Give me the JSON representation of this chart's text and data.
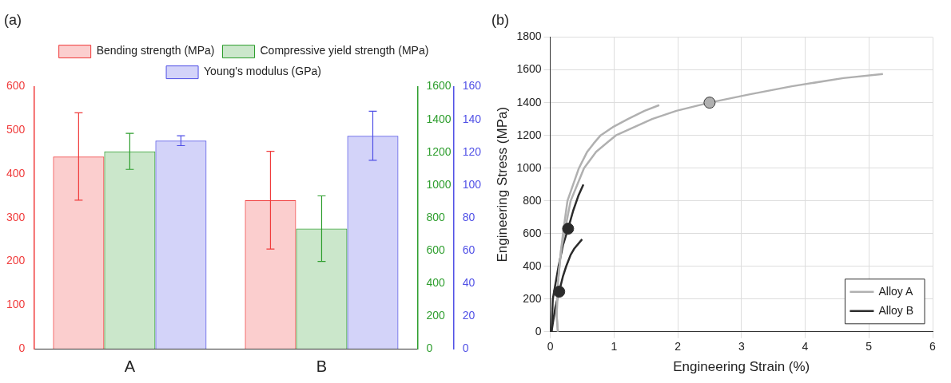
{
  "chart_data": [
    {
      "type": "bar",
      "title": "(a)",
      "categories": [
        "A",
        "B"
      ],
      "legend": "top",
      "grid": false,
      "ylim": [
        0,
        600
      ],
      "yticks": [
        0,
        100,
        200,
        300,
        400,
        500,
        600
      ],
      "y2lim": [
        0,
        1600
      ],
      "y2ticks": [
        0,
        200,
        400,
        600,
        800,
        1000,
        1200,
        1400,
        1600
      ],
      "y3lim": [
        0,
        160
      ],
      "y3ticks": [
        0,
        20,
        40,
        60,
        80,
        100,
        120,
        140,
        160
      ],
      "series": [
        {
          "name": "Bending strength (MPa)",
          "color": "#f03c3c",
          "values": [
            440,
            340
          ],
          "errors": [
            100,
            112
          ]
        },
        {
          "name": "Compressive yield strength (MPa)",
          "color": "#2e9e2e",
          "values": [
            1205,
            733
          ],
          "errors": [
            110,
            200
          ],
          "axis": "y2"
        },
        {
          "name": "Young's modulus (GPa)",
          "color": "#5050e6",
          "values": [
            127,
            130
          ],
          "errors": [
            3,
            15
          ],
          "axis": "y3"
        }
      ]
    },
    {
      "type": "line",
      "title": "(b)",
      "xlabel": "Engineering Strain (%)",
      "ylabel": "Engineering Stress (MPa)",
      "legend": "bottom right",
      "grid": true,
      "xlim": [
        0,
        6
      ],
      "xticks": [
        0,
        1,
        2,
        3,
        4,
        5,
        6
      ],
      "ylim": [
        0,
        1800
      ],
      "yticks": [
        0,
        200,
        400,
        600,
        800,
        1000,
        1200,
        1400,
        1600,
        1800
      ],
      "series": [
        {
          "name": "Alloy A",
          "color": "#b0b0b0",
          "marker": "none",
          "x": [
            0.12,
            0.1,
            0.12,
            0.17,
            0.22,
            0.32,
            0.53,
            0.72,
            1.03,
            1.6,
            1.98,
            2.5,
            3.12,
            3.79,
            4.6,
            5.22
          ],
          "values": [
            0,
            100,
            300,
            500,
            600,
            800,
            1000,
            1100,
            1200,
            1300,
            1350,
            1400,
            1450,
            1500,
            1550,
            1575
          ]
        },
        {
          "color": "#b0b0b0",
          "marker": "none",
          "x": [
            0.12,
            0.1,
            0.12,
            0.17,
            0.2,
            0.27,
            0.45,
            0.58,
            0.68,
            0.79,
            0.98,
            1.22,
            1.48,
            1.71
          ],
          "values": [
            0,
            100,
            300,
            500,
            600,
            800,
            1000,
            1100,
            1150,
            1200,
            1250,
            1300,
            1350,
            1385
          ]
        },
        {
          "name": "Alloy B",
          "color": "#2b2b2b",
          "marker": "none",
          "x": [
            0.02,
            0.04,
            0.13,
            0.2,
            0.28,
            0.36,
            0.44,
            0.52
          ],
          "values": [
            0,
            200,
            400,
            530,
            630,
            740,
            830,
            900
          ]
        },
        {
          "color": "#2b2b2b",
          "marker": "none",
          "x": [
            0.02,
            0.08,
            0.14,
            0.2,
            0.25,
            0.32,
            0.38,
            0.5
          ],
          "values": [
            0,
            150,
            245,
            340,
            400,
            470,
            510,
            565
          ]
        },
        {
          "type": "scatter",
          "color": "#b0b0b0",
          "marker": "circle",
          "x": [
            2.5
          ],
          "values": [
            1400
          ]
        },
        {
          "type": "scatter",
          "color": "#2b2b2b",
          "marker": "circle",
          "x": [
            0.28,
            0.14
          ],
          "values": [
            630,
            245
          ]
        }
      ]
    }
  ]
}
